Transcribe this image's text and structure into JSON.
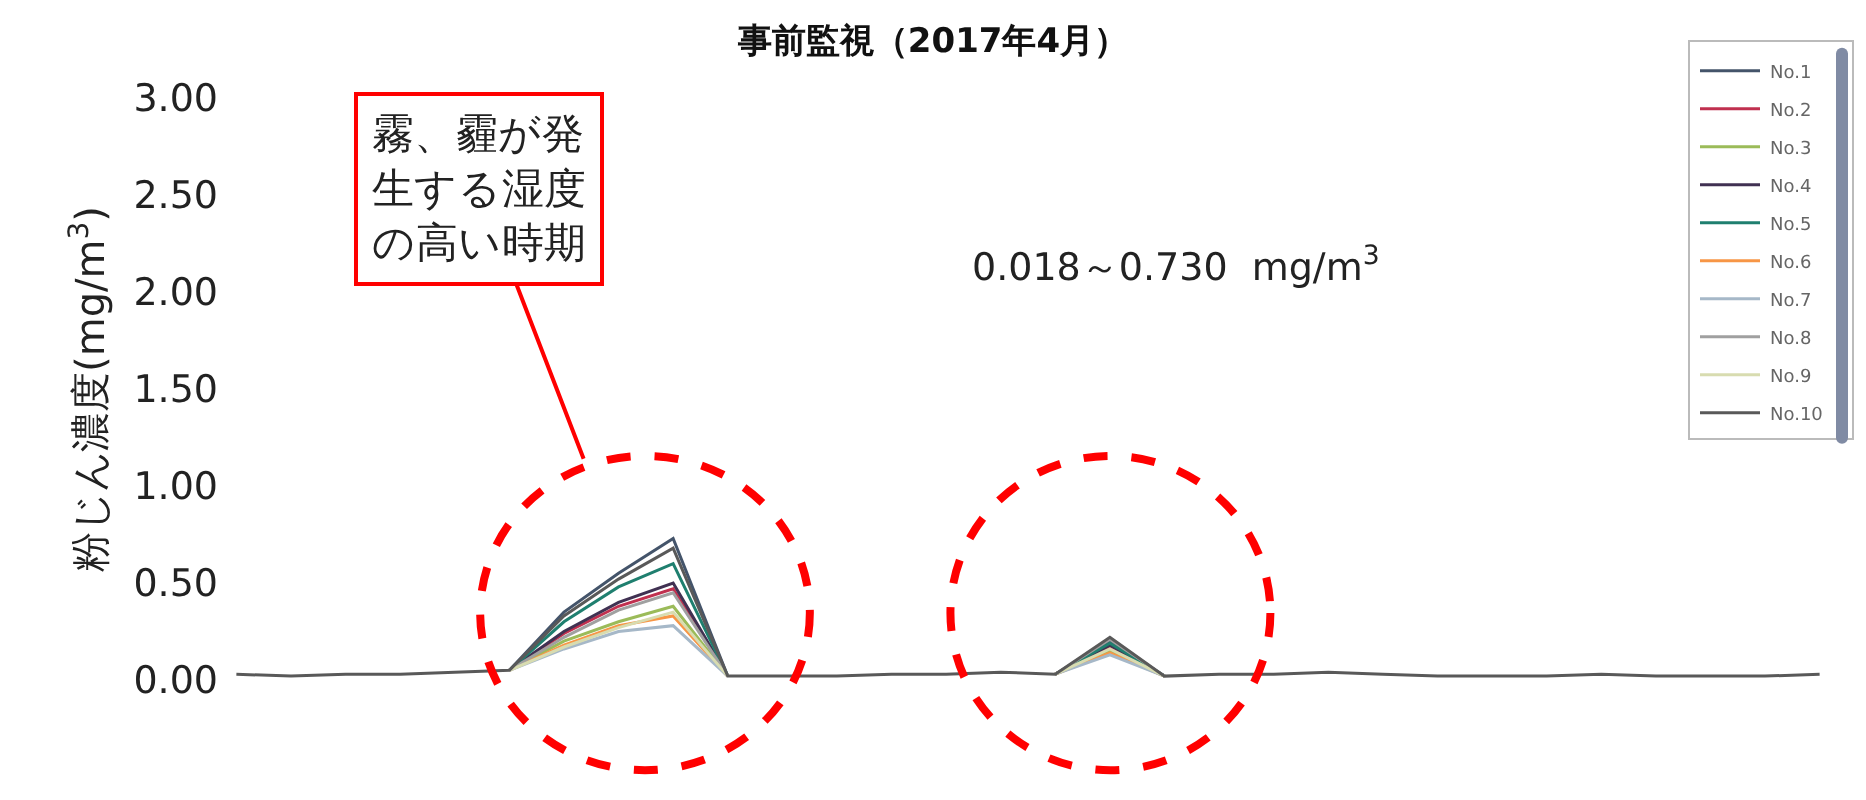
{
  "chart_data": {
    "type": "line",
    "title": "事前監視（2017年4月）",
    "ylabel": "粉じん濃度(mg/m$^{3}$)",
    "categories": [
      null,
      null,
      null,
      null,
      null,
      null,
      null,
      null,
      null,
      null,
      null,
      null,
      null,
      null,
      null,
      null,
      null,
      null,
      null,
      null,
      null,
      null,
      null,
      null,
      null,
      null,
      null,
      null,
      null,
      null
    ],
    "ylim": [
      0,
      3
    ],
    "yticks": [
      {
        "value": 0,
        "label": "0.00"
      },
      {
        "value": 0.5,
        "label": "0.50"
      },
      {
        "value": 1,
        "label": "1.00"
      },
      {
        "value": 1.5,
        "label": "1.50"
      },
      {
        "value": 2,
        "label": "2.00"
      },
      {
        "value": 2.5,
        "label": "2.50"
      },
      {
        "value": 3,
        "label": "3.00"
      }
    ],
    "legend": "top right",
    "marker": "none",
    "line_style": "solid",
    "annotations": [
      "霧、霾が発生する湿度の高い時期",
      "0.018～0.730  mg/m$^{3}$"
    ],
    "series": [
      {
        "name": "No.1",
        "color": "#44546a",
        "values": [
          null,
          null,
          null,
          null,
          null,
          0.05,
          0.35,
          0.55,
          0.73,
          0.02,
          null,
          null,
          null,
          null,
          null,
          0.03,
          0.2,
          0.02,
          null,
          null,
          null,
          null,
          null,
          null,
          null,
          null,
          null,
          null,
          null,
          null
        ]
      },
      {
        "name": "No.2",
        "color": "#c0304f",
        "values": [
          null,
          null,
          null,
          null,
          null,
          0.05,
          0.24,
          0.38,
          0.47,
          0.02,
          null,
          null,
          null,
          null,
          null,
          0.03,
          0.17,
          0.02,
          null,
          null,
          null,
          null,
          null,
          null,
          null,
          null,
          null,
          null,
          null,
          null
        ]
      },
      {
        "name": "No.3",
        "color": "#9bbb59",
        "values": [
          null,
          null,
          null,
          null,
          null,
          0.05,
          0.2,
          0.3,
          0.38,
          0.02,
          null,
          null,
          null,
          null,
          null,
          0.03,
          0.15,
          0.02,
          null,
          null,
          null,
          null,
          null,
          null,
          null,
          null,
          null,
          null,
          null,
          null
        ]
      },
      {
        "name": "No.4",
        "color": "#403152",
        "values": [
          null,
          null,
          null,
          null,
          null,
          0.05,
          0.25,
          0.4,
          0.5,
          0.02,
          null,
          null,
          null,
          null,
          null,
          0.03,
          0.18,
          0.02,
          null,
          null,
          null,
          null,
          null,
          null,
          null,
          null,
          null,
          null,
          null,
          null
        ]
      },
      {
        "name": "No.5",
        "color": "#1f7f6f",
        "values": [
          null,
          null,
          null,
          null,
          null,
          0.05,
          0.3,
          0.48,
          0.6,
          0.02,
          null,
          null,
          null,
          null,
          null,
          0.03,
          0.19,
          0.02,
          null,
          null,
          null,
          null,
          null,
          null,
          null,
          null,
          null,
          null,
          null,
          null
        ]
      },
      {
        "name": "No.6",
        "color": "#f79646",
        "values": [
          null,
          null,
          null,
          null,
          null,
          0.05,
          0.18,
          0.28,
          0.33,
          0.02,
          null,
          null,
          null,
          null,
          null,
          0.03,
          0.14,
          0.02,
          null,
          null,
          null,
          null,
          null,
          null,
          null,
          null,
          null,
          null,
          null,
          null
        ]
      },
      {
        "name": "No.7",
        "color": "#a6b8c8",
        "values": [
          null,
          null,
          null,
          null,
          null,
          0.05,
          0.16,
          0.25,
          0.28,
          0.02,
          null,
          null,
          null,
          null,
          null,
          0.03,
          0.13,
          0.02,
          null,
          null,
          null,
          null,
          null,
          null,
          null,
          null,
          null,
          null,
          null,
          null
        ]
      },
      {
        "name": "No.8",
        "color": "#a0a0a0",
        "values": [
          null,
          null,
          null,
          null,
          null,
          0.05,
          0.22,
          0.36,
          0.45,
          0.02,
          null,
          null,
          null,
          null,
          null,
          0.03,
          0.21,
          0.02,
          null,
          null,
          null,
          null,
          null,
          null,
          null,
          null,
          null,
          null,
          null,
          null
        ]
      },
      {
        "name": "No.9",
        "color": "#d8dcb0",
        "values": [
          null,
          null,
          null,
          null,
          null,
          0.05,
          0.17,
          0.27,
          0.35,
          0.02,
          null,
          null,
          null,
          null,
          null,
          0.03,
          0.16,
          0.02,
          null,
          null,
          null,
          null,
          null,
          null,
          null,
          null,
          null,
          null,
          null,
          null
        ]
      },
      {
        "name": "No.10",
        "color": "#595959",
        "values": [
          0.03,
          0.02,
          0.03,
          0.03,
          0.04,
          0.05,
          0.33,
          0.52,
          0.68,
          0.02,
          0.02,
          0.02,
          0.03,
          0.03,
          0.04,
          0.03,
          0.22,
          0.02,
          0.03,
          0.03,
          0.04,
          0.03,
          0.02,
          0.02,
          0.02,
          0.03,
          0.02,
          0.02,
          0.02,
          0.03
        ]
      }
    ]
  }
}
